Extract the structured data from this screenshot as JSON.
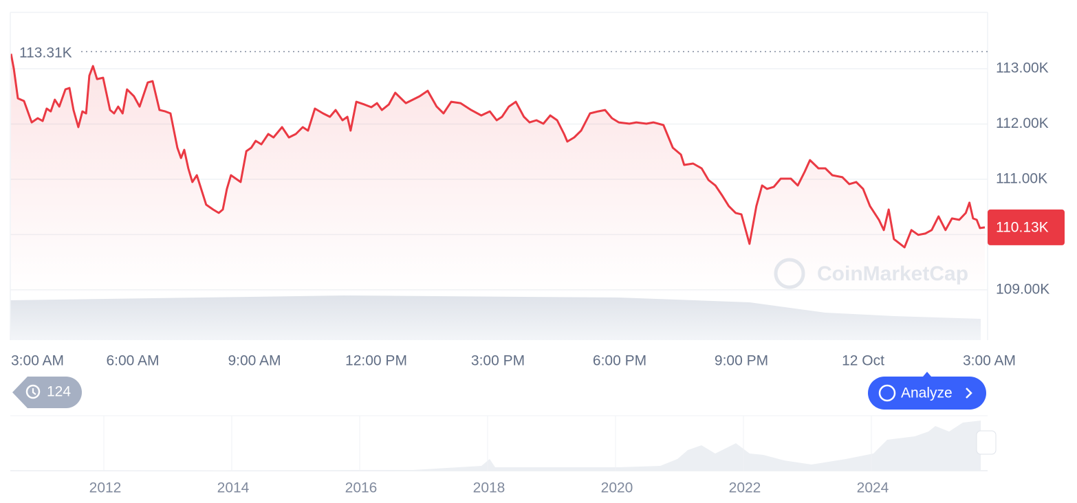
{
  "chart_data": {
    "type": "line",
    "series": [
      {
        "name": "Price",
        "color": "#ea3943",
        "x": [
          0,
          0.07,
          0.17,
          0.32,
          0.51,
          0.66,
          0.78,
          0.88,
          0.98,
          1.08,
          1.19,
          1.34,
          1.44,
          1.54,
          1.66,
          1.76,
          1.85,
          1.93,
          2.02,
          2.12,
          2.27,
          2.44,
          2.54,
          2.64,
          2.75,
          2.86,
          3.03,
          3.17,
          3.37,
          3.49,
          3.66,
          3.8,
          3.93,
          4.1,
          4.19,
          4.27,
          4.37,
          4.47,
          4.58,
          4.81,
          4.98,
          5.12,
          5.22,
          5.32,
          5.42,
          5.66,
          5.8,
          5.92,
          6.03,
          6.17,
          6.34,
          6.47,
          6.68,
          6.85,
          7.02,
          7.19,
          7.32,
          7.49,
          7.69,
          7.86,
          8,
          8.17,
          8.29,
          8.37,
          8.51,
          8.71,
          8.88,
          9.02,
          9.14,
          9.31,
          9.47,
          9.73,
          9.9,
          10.07,
          10.27,
          10.49,
          10.66,
          10.85,
          11.08,
          11.34,
          11.59,
          11.8,
          11.97,
          12.1,
          12.27,
          12.44,
          12.64,
          12.78,
          12.95,
          13.12,
          13.29,
          13.46,
          13.63,
          13.71,
          13.88,
          14.05,
          14.27,
          14.47,
          14.64,
          14.81,
          14.98,
          15.24,
          15.41,
          15.66,
          15.83,
          16.08,
          16.31,
          16.51,
          16.59,
          16.81,
          17.02,
          17.19,
          17.36,
          17.53,
          17.69,
          17.86,
          18,
          18.2,
          18.37,
          18.51,
          18.63,
          18.8,
          18.97,
          19.22,
          19.39,
          19.56,
          19.69,
          19.9,
          20.07,
          20.24,
          20.49,
          20.66,
          20.83,
          21,
          21.17,
          21.39,
          21.51,
          21.63,
          21.76,
          22.02,
          22.19,
          22.36,
          22.53,
          22.69,
          22.86,
          23.03,
          23.19,
          23.37,
          23.53,
          23.62,
          23.71,
          23.8,
          23.88,
          24
        ],
        "values": [
          113270,
          113000,
          112465,
          112416,
          112030,
          112105,
          112055,
          112279,
          112229,
          112440,
          112316,
          112627,
          112651,
          112254,
          111944,
          112229,
          112192,
          112875,
          113049,
          112813,
          112838,
          112254,
          112192,
          112316,
          112192,
          112627,
          112502,
          112316,
          112751,
          112776,
          112254,
          112229,
          112192,
          111571,
          111385,
          111534,
          111198,
          110950,
          111074,
          110540,
          110453,
          110391,
          110453,
          110826,
          111074,
          110950,
          111509,
          111571,
          111695,
          111633,
          111819,
          111757,
          111944,
          111757,
          111819,
          111944,
          111881,
          112279,
          112192,
          112130,
          112254,
          112068,
          112130,
          111881,
          112403,
          112353,
          112304,
          112378,
          112254,
          112353,
          112565,
          112378,
          112440,
          112502,
          112602,
          112316,
          112192,
          112403,
          112378,
          112254,
          112155,
          112229,
          112068,
          112130,
          112316,
          112403,
          112130,
          112030,
          112068,
          112006,
          112155,
          112068,
          111819,
          111683,
          111757,
          111881,
          112192,
          112229,
          112254,
          112105,
          112030,
          112006,
          112030,
          112006,
          112030,
          111981,
          111571,
          111447,
          111260,
          111285,
          111198,
          110987,
          110888,
          110702,
          110515,
          110391,
          110366,
          109832,
          110515,
          110888,
          110826,
          110863,
          111012,
          111012,
          110888,
          111136,
          111347,
          111198,
          111198,
          111074,
          111037,
          110913,
          110950,
          110826,
          110515,
          110267,
          110081,
          110453,
          109919,
          109770,
          110081,
          109994,
          110018,
          110081,
          110329,
          110081,
          110292,
          110267,
          110391,
          110577,
          110292,
          110267,
          110118,
          110130
        ]
      }
    ],
    "xlim": [
      0,
      24
    ],
    "xticks": [
      {
        "value": 0,
        "label": "3:00 AM"
      },
      {
        "value": 3,
        "label": "6:00 AM"
      },
      {
        "value": 6,
        "label": "9:00 AM"
      },
      {
        "value": 9,
        "label": "12:00 PM"
      },
      {
        "value": 12,
        "label": "3:00 PM"
      },
      {
        "value": 15,
        "label": "6:00 PM"
      },
      {
        "value": 18,
        "label": "9:00 PM"
      },
      {
        "value": 21,
        "label": "12 Oct"
      },
      {
        "value": 24,
        "label": "3:00 AM"
      }
    ],
    "ylim": [
      108090,
      114020
    ],
    "yticks": [
      {
        "value": 109000,
        "label": "109.00K"
      },
      {
        "value": 110000,
        "label": "110.00K"
      },
      {
        "value": 111000,
        "label": "111.00K"
      },
      {
        "value": 112000,
        "label": "112.00K"
      },
      {
        "value": 113000,
        "label": "113.00K"
      }
    ],
    "grid": true,
    "high": {
      "value": 113310,
      "label": "113.31K"
    },
    "last": {
      "value": 110130,
      "label": "110.13K"
    },
    "watermark": "CoinMarketCap",
    "navigator_labels": [
      "2012",
      "2014",
      "2016",
      "2018",
      "2020",
      "2022",
      "2024"
    ],
    "history_count": "124",
    "analyze_button": "Analyze"
  }
}
